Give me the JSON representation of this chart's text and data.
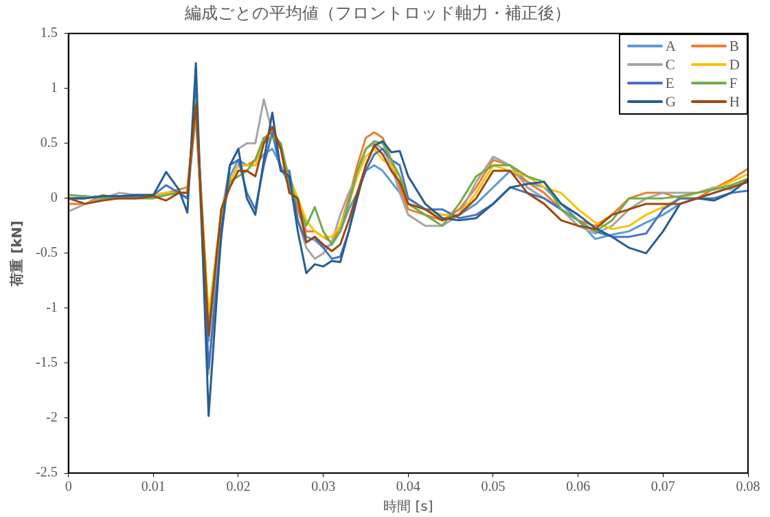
{
  "chart_data": {
    "type": "line",
    "title": "編成ごとの平均値（フロントロッド軸力・補正後）",
    "xlabel": "時間 [s]",
    "ylabel": "荷重 [kN]",
    "x": [
      0,
      0.002,
      0.004,
      0.006,
      0.008,
      0.01,
      0.0115,
      0.013,
      0.014,
      0.015,
      0.0165,
      0.018,
      0.019,
      0.02,
      0.021,
      0.022,
      0.023,
      0.024,
      0.025,
      0.026,
      0.027,
      0.028,
      0.029,
      0.03,
      0.031,
      0.032,
      0.033,
      0.034,
      0.035,
      0.036,
      0.037,
      0.038,
      0.039,
      0.04,
      0.042,
      0.044,
      0.046,
      0.048,
      0.05,
      0.052,
      0.054,
      0.056,
      0.058,
      0.06,
      0.062,
      0.064,
      0.066,
      0.068,
      0.07,
      0.072,
      0.074,
      0.076,
      0.078,
      0.08
    ],
    "series": [
      {
        "name": "A",
        "color": "#5b9bd5",
        "values": [
          0,
          0.01,
          0.02,
          0.02,
          0.03,
          0.02,
          0.05,
          0.05,
          0.0,
          0.75,
          -1.3,
          -0.2,
          0.2,
          0.35,
          0.3,
          0.3,
          0.4,
          0.45,
          0.3,
          0.1,
          -0.1,
          -0.35,
          -0.38,
          -0.45,
          -0.42,
          -0.3,
          -0.1,
          0.05,
          0.25,
          0.3,
          0.25,
          0.15,
          0.05,
          -0.05,
          -0.1,
          -0.15,
          -0.15,
          -0.05,
          0.1,
          0.25,
          0.15,
          0.1,
          -0.05,
          -0.2,
          -0.37,
          -0.33,
          -0.3,
          -0.22,
          -0.15,
          -0.05,
          0.0,
          0.05,
          0.1,
          0.15
        ]
      },
      {
        "name": "B",
        "color": "#ed7d31",
        "values": [
          -0.05,
          -0.05,
          0.03,
          0.0,
          0.02,
          0.03,
          0.05,
          0.08,
          0.1,
          0.85,
          -1.1,
          -0.1,
          0.15,
          0.3,
          0.3,
          0.35,
          0.55,
          0.6,
          0.45,
          0.15,
          -0.1,
          -0.3,
          -0.3,
          -0.35,
          -0.4,
          -0.25,
          0.0,
          0.3,
          0.55,
          0.6,
          0.55,
          0.35,
          0.1,
          -0.1,
          -0.15,
          -0.2,
          -0.1,
          0.1,
          0.35,
          0.3,
          0.15,
          0.05,
          -0.1,
          -0.2,
          -0.25,
          -0.15,
          0.0,
          0.05,
          0.05,
          0.0,
          0.0,
          0.09,
          0.17,
          0.27
        ]
      },
      {
        "name": "C",
        "color": "#a5a5a5",
        "values": [
          -0.12,
          -0.05,
          0.0,
          0.05,
          0.03,
          0.03,
          0.05,
          0.05,
          0.0,
          0.85,
          -1.6,
          -0.15,
          0.3,
          0.45,
          0.5,
          0.5,
          0.9,
          0.6,
          0.5,
          0.15,
          -0.2,
          -0.45,
          -0.55,
          -0.5,
          -0.4,
          -0.15,
          0.05,
          0.2,
          0.45,
          0.5,
          0.45,
          0.3,
          0.05,
          -0.15,
          -0.25,
          -0.25,
          -0.15,
          0.15,
          0.38,
          0.3,
          0.1,
          0.0,
          -0.1,
          -0.25,
          -0.32,
          -0.25,
          -0.1,
          0.0,
          0.05,
          0.05,
          0.05,
          0.1,
          0.08,
          0.18
        ]
      },
      {
        "name": "D",
        "color": "#ffc000",
        "values": [
          null,
          null,
          null,
          null,
          0.02,
          0.03,
          0.05,
          0.05,
          0.05,
          0.8,
          -1.05,
          -0.2,
          0.15,
          0.3,
          0.3,
          0.3,
          0.5,
          0.55,
          0.45,
          0.2,
          0.0,
          -0.2,
          -0.3,
          -0.35,
          -0.35,
          -0.25,
          -0.05,
          0.2,
          0.38,
          0.45,
          0.35,
          0.3,
          0.2,
          0.0,
          -0.1,
          -0.15,
          -0.15,
          0.05,
          0.3,
          0.25,
          0.2,
          0.1,
          0.05,
          -0.1,
          -0.22,
          -0.28,
          -0.25,
          -0.15,
          -0.08,
          0.0,
          0.05,
          0.08,
          0.15,
          0.22
        ]
      },
      {
        "name": "E",
        "color": "#4472c4",
        "values": [
          0.0,
          0.0,
          0.02,
          0.02,
          0.02,
          0.03,
          0.12,
          0.05,
          0.0,
          1.0,
          -1.55,
          -0.35,
          0.3,
          0.35,
          0.05,
          -0.1,
          0.3,
          0.6,
          0.25,
          0.25,
          -0.2,
          -0.4,
          -0.35,
          -0.45,
          -0.55,
          -0.53,
          -0.3,
          0.05,
          0.25,
          0.4,
          0.45,
          0.35,
          0.3,
          0.0,
          -0.1,
          -0.1,
          -0.18,
          -0.15,
          -0.05,
          0.1,
          0.05,
          0.0,
          -0.1,
          -0.2,
          -0.3,
          -0.35,
          -0.35,
          -0.32,
          -0.1,
          0.0,
          0.0,
          0.0,
          0.05,
          0.07
        ]
      },
      {
        "name": "F",
        "color": "#70ad47",
        "values": [
          0.03,
          0.02,
          0.0,
          0.0,
          0.0,
          0.0,
          0.03,
          0.05,
          0.05,
          0.9,
          -1.2,
          -0.1,
          0.15,
          0.2,
          0.25,
          0.35,
          0.55,
          0.55,
          0.5,
          0.15,
          -0.05,
          -0.25,
          -0.08,
          -0.3,
          -0.42,
          -0.3,
          -0.05,
          0.25,
          0.45,
          0.52,
          0.5,
          0.35,
          0.2,
          -0.05,
          -0.15,
          -0.25,
          -0.05,
          0.2,
          0.3,
          0.3,
          0.2,
          0.15,
          -0.1,
          -0.2,
          -0.3,
          -0.2,
          0.0,
          0.0,
          0.0,
          0.02,
          0.05,
          0.08,
          0.12,
          0.18
        ]
      },
      {
        "name": "G",
        "color": "#255e91",
        "values": [
          0,
          0,
          0.02,
          0.02,
          0.03,
          0.03,
          0.24,
          0.08,
          -0.13,
          1.23,
          -1.98,
          -0.3,
          0.3,
          0.45,
          0.0,
          -0.15,
          0.35,
          0.78,
          0.25,
          0.2,
          -0.3,
          -0.68,
          -0.6,
          -0.62,
          -0.57,
          -0.58,
          -0.3,
          0.0,
          0.3,
          0.48,
          0.52,
          0.42,
          0.43,
          0.2,
          -0.05,
          -0.18,
          -0.2,
          -0.18,
          -0.05,
          0.1,
          0.13,
          0.15,
          -0.05,
          -0.15,
          -0.27,
          -0.35,
          -0.45,
          -0.5,
          -0.3,
          -0.05,
          0.0,
          -0.02,
          0.05,
          0.17
        ]
      },
      {
        "name": "H",
        "color": "#9e480e",
        "values": [
          0.0,
          -0.05,
          -0.02,
          0.0,
          0.0,
          0.02,
          -0.02,
          0.05,
          0.05,
          0.85,
          -1.25,
          -0.1,
          0.1,
          0.25,
          0.25,
          0.2,
          0.5,
          0.65,
          0.45,
          0.05,
          0.0,
          -0.4,
          -0.35,
          -0.42,
          -0.48,
          -0.42,
          -0.2,
          0.05,
          0.3,
          0.48,
          0.4,
          0.25,
          0.15,
          -0.05,
          -0.1,
          -0.2,
          -0.15,
          0.0,
          0.25,
          0.25,
          0.05,
          -0.05,
          -0.2,
          -0.25,
          -0.28,
          -0.15,
          -0.1,
          -0.05,
          -0.05,
          -0.05,
          0.0,
          0.05,
          0.1,
          0.15
        ]
      }
    ],
    "xlim": [
      0,
      0.08
    ],
    "xticks": [
      0,
      0.01,
      0.02,
      0.03,
      0.04,
      0.05,
      0.06,
      0.07,
      0.08
    ],
    "ylim": [
      -2.5,
      1.5
    ],
    "yticks": [
      -2.5,
      -2,
      -1.5,
      -1,
      -0.5,
      0,
      0.5,
      1,
      1.5
    ],
    "grid": false,
    "legend": "top right",
    "marker": "none",
    "line_style": "solid"
  }
}
